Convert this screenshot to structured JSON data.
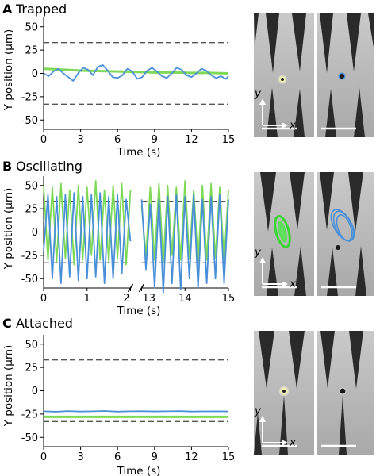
{
  "colors": {
    "green": "#7ed957",
    "blue": "#4a90d9",
    "dash": "#555555"
  },
  "chart_data": [
    {
      "type": "line",
      "panel": "A",
      "title": "Trapped",
      "xlabel": "Time (s)",
      "ylabel": "Y position (μm)",
      "xlim": [
        0,
        15
      ],
      "ylim": [
        -60,
        60
      ],
      "xticks": [
        "0",
        "3",
        "6",
        "9",
        "12",
        "15"
      ],
      "yticks": [
        "50",
        "25",
        "0",
        "-25",
        "-50"
      ],
      "threshold_lines": [
        33,
        -33
      ],
      "series": [
        {
          "color": "green",
          "x": [
            0,
            1.5,
            3,
            4.5,
            6,
            7.5,
            9,
            10.5,
            12,
            13.5,
            15
          ],
          "y": [
            5,
            4,
            3,
            2.5,
            2,
            1.5,
            1,
            1,
            0.5,
            0.5,
            0
          ]
        },
        {
          "color": "blue",
          "x": [
            0,
            0.4,
            0.8,
            1.2,
            1.6,
            2.0,
            2.4,
            2.8,
            3.2,
            3.6,
            4.0,
            4.4,
            4.8,
            5.2,
            5.6,
            6.0,
            6.4,
            6.8,
            7.2,
            7.6,
            8.0,
            8.4,
            8.8,
            9.2,
            9.6,
            10.0,
            10.4,
            10.8,
            11.2,
            11.6,
            12.0,
            12.4,
            12.8,
            13.2,
            13.6,
            14.0,
            14.4,
            14.8,
            15
          ],
          "y": [
            0,
            -3,
            2,
            5,
            0,
            -4,
            -8,
            0,
            6,
            4,
            -2,
            7,
            9,
            3,
            -4,
            -5,
            -2,
            5,
            2,
            -6,
            -4,
            3,
            6,
            2,
            -3,
            -5,
            0,
            6,
            4,
            -2,
            -4,
            0,
            5,
            3,
            -2,
            -5,
            -3,
            -6,
            -3
          ]
        }
      ]
    },
    {
      "type": "line",
      "panel": "B",
      "title": "Oscillating",
      "xlabel": "Time (s)",
      "ylabel": "Y position (μm)",
      "ylim": [
        -60,
        60
      ],
      "broken_axis": true,
      "segments": [
        {
          "xlim": [
            0,
            2
          ]
        },
        {
          "xlim": [
            13,
            15
          ]
        }
      ],
      "xticks": [
        "0",
        "1",
        "2",
        "13",
        "14",
        "15"
      ],
      "yticks": [
        "50",
        "25",
        "0",
        "-25",
        "-50"
      ],
      "threshold_lines": [
        33,
        -33
      ],
      "series": [
        {
          "color": "green",
          "x": [
            0,
            0.1,
            0.2,
            0.3,
            0.4,
            0.5,
            0.6,
            0.7,
            0.8,
            0.9,
            1.0,
            1.1,
            1.2,
            1.3,
            1.4,
            1.5,
            1.6,
            1.7,
            1.8,
            1.9,
            2.0,
            13.0,
            13.1,
            13.2,
            13.3,
            13.4,
            13.5,
            13.6,
            13.7,
            13.8,
            13.9,
            14.0,
            14.1,
            14.2,
            14.3,
            14.4,
            14.5,
            14.6,
            14.7,
            14.8,
            14.9,
            15.0
          ],
          "y": [
            50,
            -30,
            48,
            -32,
            52,
            -28,
            45,
            -35,
            50,
            -30,
            48,
            -25,
            55,
            -30,
            45,
            -32,
            50,
            -28,
            52,
            -35,
            45,
            28,
            -25,
            48,
            -30,
            52,
            -32,
            50,
            -25,
            48,
            -30,
            55,
            -28,
            45,
            -32,
            50,
            -30,
            52,
            -28,
            48,
            -30,
            45
          ]
        },
        {
          "color": "blue",
          "x": [
            0,
            0.1,
            0.2,
            0.3,
            0.4,
            0.5,
            0.6,
            0.7,
            0.8,
            0.9,
            1.0,
            1.1,
            1.2,
            1.3,
            1.4,
            1.5,
            1.6,
            1.7,
            1.8,
            1.9,
            2.0,
            13.0,
            13.1,
            13.2,
            13.3,
            13.4,
            13.5,
            13.6,
            13.7,
            13.8,
            13.9,
            14.0,
            14.1,
            14.2,
            14.3,
            14.4,
            14.5,
            14.6,
            14.7,
            14.8,
            14.9,
            15.0
          ],
          "y": [
            -20,
            40,
            -50,
            38,
            -55,
            40,
            -48,
            42,
            -52,
            38,
            -50,
            40,
            -48,
            42,
            -55,
            38,
            -50,
            40,
            -45,
            35,
            -10,
            35,
            -40,
            30,
            -60,
            35,
            -65,
            38,
            -55,
            40,
            -62,
            38,
            -50,
            40,
            -60,
            35,
            -55,
            38,
            -50,
            40,
            -55,
            35
          ]
        }
      ]
    },
    {
      "type": "line",
      "panel": "C",
      "title": "Attached",
      "xlabel": "Time (s)",
      "ylabel": "Y position (μm)",
      "xlim": [
        0,
        15
      ],
      "ylim": [
        -60,
        60
      ],
      "xticks": [
        "0",
        "3",
        "6",
        "9",
        "12",
        "15"
      ],
      "yticks": [
        "50",
        "25",
        "0",
        "-25",
        "-50"
      ],
      "threshold_lines": [
        33,
        -33
      ],
      "series": [
        {
          "color": "green",
          "x": [
            0,
            15
          ],
          "y": [
            -28,
            -28
          ]
        },
        {
          "color": "blue",
          "x": [
            0,
            1,
            2,
            3,
            4,
            5,
            6,
            7,
            8,
            9,
            10,
            11,
            12,
            13,
            14,
            15
          ],
          "y": [
            -22,
            -22.5,
            -21.8,
            -22.3,
            -22,
            -21.7,
            -22.4,
            -22,
            -21.9,
            -22.2,
            -22,
            -21.8,
            -22.3,
            -22.1,
            -22,
            -22.2
          ]
        }
      ]
    }
  ],
  "micrographs": {
    "axis_x": "x",
    "axis_y": "y"
  }
}
